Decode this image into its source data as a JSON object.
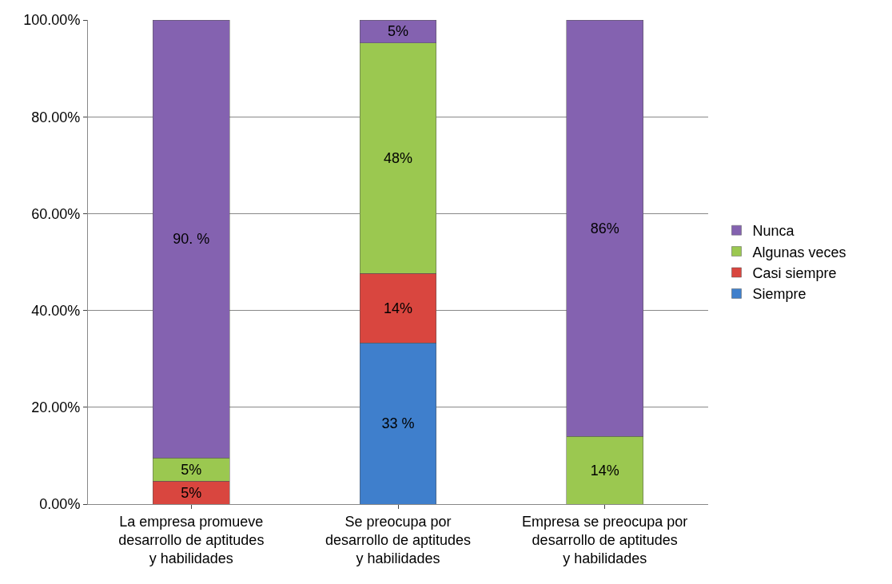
{
  "chart_data": {
    "type": "bar",
    "stacked": true,
    "categories": [
      "La empresa promueve desarrollo de aptitudes y habilidades",
      "Se preocupa por desarrollo de aptitudes y habilidades",
      "Empresa se preocupa por desarrollo de aptitudes y habilidades"
    ],
    "series": [
      {
        "name": "Siempre",
        "color": "#3f7fcc",
        "values": [
          null,
          33.33,
          null
        ],
        "value_labels": [
          null,
          "33 %",
          null
        ]
      },
      {
        "name": "Casi siempre",
        "color": "#d9463f",
        "values": [
          4.76,
          14.29,
          null
        ],
        "value_labels": [
          "5%",
          "14%",
          null
        ]
      },
      {
        "name": "Algunas veces",
        "color": "#9bc850",
        "values": [
          4.76,
          47.62,
          14
        ],
        "value_labels": [
          "5%",
          "48%",
          "14%"
        ]
      },
      {
        "name": "Nunca",
        "color": "#8462b0",
        "values": [
          90.48,
          4.76,
          86
        ],
        "value_labels": [
          "90. %",
          "5%",
          "86%"
        ]
      }
    ],
    "ylim": [
      0,
      100
    ],
    "yticks": [
      {
        "value": 0,
        "label": "0.00%"
      },
      {
        "value": 20,
        "label": "20.00%"
      },
      {
        "value": 40,
        "label": "40.00%"
      },
      {
        "value": 60,
        "label": "60.00%"
      },
      {
        "value": 80,
        "label": "80.00%"
      },
      {
        "value": 100,
        "label": "100.00%"
      }
    ],
    "grid": "y",
    "legend": "right"
  }
}
